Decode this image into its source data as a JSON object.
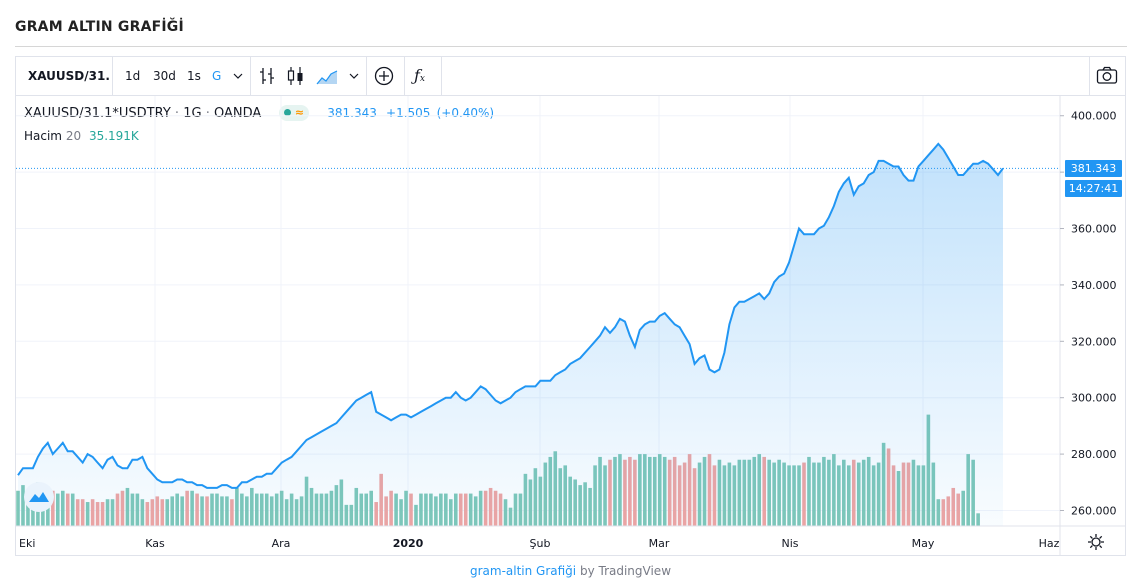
{
  "page": {
    "title": "GRAM ALTIN GRAFİĞİ"
  },
  "toolbar": {
    "symbol": "XAUUSD/31.",
    "intervals": [
      "1d",
      "30d",
      "1s",
      "G"
    ],
    "active_interval": "G",
    "icons": [
      "candle-bars-icon",
      "candlestick-icon",
      "area-chart-icon",
      "chevron-down-icon",
      "add-compare-icon",
      "indicators-icon",
      "camera-icon"
    ]
  },
  "legend": {
    "symbol_full": "XAUUSD/31.1*USDTRY",
    "interval": "1G",
    "source": "OANDA",
    "price": "381.343",
    "change": "+1.505",
    "change_pct": "(+0.40%)",
    "volume_label": "Hacim",
    "volume_length": "20",
    "volume_value": "35.191K"
  },
  "price_axis": {
    "current_price": "381.343",
    "countdown": "14:27:41"
  },
  "footer": {
    "link_text": "gram-altin Grafiği",
    "by_text": "by TradingView"
  },
  "colors": {
    "line": "#2196f3",
    "vol_up": "#7fc8b8",
    "vol_down": "#f0a5a2",
    "accent": "#2196f3"
  },
  "chart_data": {
    "type": "area",
    "y_tick_labels": [
      "400.000",
      "380.000",
      "360.000",
      "340.000",
      "320.000",
      "300.000",
      "280.000",
      "260.000"
    ],
    "ylim": [
      254.5,
      407
    ],
    "x_tick_labels": [
      "Eki",
      "Kas",
      "Ara",
      "2020",
      "Şub",
      "Mar",
      "Nis",
      "May",
      "Haz"
    ],
    "series": [
      {
        "values": [
          272.5,
          275,
          275,
          275,
          279,
          282,
          284,
          280,
          282,
          284,
          281,
          281,
          279,
          277,
          280,
          279,
          277,
          275,
          278,
          279,
          276,
          275,
          275,
          278,
          278,
          279,
          275,
          273,
          271,
          270,
          270,
          270,
          271,
          271,
          270,
          270,
          269,
          269,
          268,
          268,
          268,
          269,
          269,
          268,
          268,
          270,
          270,
          271,
          272,
          272,
          273,
          273,
          275,
          277,
          278,
          279,
          281,
          283,
          285,
          286,
          287,
          288,
          289,
          290,
          291,
          293,
          295,
          297,
          299,
          300,
          301,
          302,
          295,
          294,
          293,
          292,
          293,
          294,
          294,
          293,
          294,
          295,
          296,
          297,
          298,
          299,
          300,
          300,
          302,
          300,
          299,
          300,
          302,
          304,
          303,
          301,
          299,
          298,
          299,
          300,
          302,
          303,
          304,
          304,
          304,
          306,
          306,
          306,
          308,
          309,
          310,
          312,
          313,
          314,
          316,
          318,
          320,
          322,
          325,
          323,
          325,
          328,
          327,
          322,
          318,
          324,
          326,
          327,
          327,
          329,
          330,
          328,
          326,
          325,
          322,
          319,
          312,
          314,
          315,
          310,
          309,
          310,
          316,
          326,
          332,
          334,
          334,
          335,
          336,
          337,
          335,
          337,
          341,
          343,
          344,
          348,
          354,
          360,
          358,
          358,
          358,
          360,
          361,
          364,
          368,
          373,
          376,
          378,
          372,
          375,
          376,
          379,
          380,
          384,
          384,
          383,
          382,
          382,
          379,
          377,
          377,
          382,
          384,
          386,
          388,
          390,
          388,
          385,
          382,
          379,
          379,
          381,
          383,
          383,
          384,
          383,
          381,
          379,
          381.343
        ]
      },
      {
        "name": "Hacim",
        "values": [
          267,
          269,
          264,
          267,
          270,
          267,
          264,
          267,
          266,
          267,
          266,
          266,
          264,
          264,
          263,
          264,
          263,
          263,
          264,
          264,
          266,
          267,
          268,
          266,
          266,
          264,
          263,
          264,
          265,
          264,
          264,
          265,
          266,
          265,
          267,
          267,
          266,
          265,
          265,
          266,
          266,
          265,
          265,
          264,
          268,
          266,
          265,
          268,
          266,
          266,
          266,
          265,
          266,
          267,
          264,
          266,
          264,
          265,
          272,
          268,
          266,
          266,
          266,
          267,
          269,
          271,
          262,
          262,
          268,
          266,
          266,
          267,
          263,
          273,
          265,
          267,
          266,
          264,
          267,
          266,
          262,
          266,
          266,
          266,
          265,
          266,
          266,
          264,
          266,
          266,
          266,
          266,
          265,
          267,
          267,
          268,
          267,
          266,
          264,
          261,
          266,
          266,
          273,
          271,
          275,
          272,
          277,
          279,
          281,
          275,
          276,
          272,
          271,
          269,
          270,
          268,
          276,
          279,
          276,
          278,
          279,
          280,
          278,
          279,
          278,
          280,
          280,
          279,
          279,
          280,
          279,
          278,
          279,
          276,
          277,
          280,
          275,
          277,
          279,
          280,
          276,
          278,
          276,
          277,
          276,
          278,
          278,
          278,
          279,
          280,
          279,
          278,
          277,
          278,
          277,
          276,
          276,
          276,
          277,
          279,
          277,
          277,
          279,
          278,
          280,
          276,
          278,
          276,
          278,
          277,
          278,
          279,
          276,
          277,
          284,
          282,
          276,
          274,
          277,
          277,
          278,
          276,
          276,
          294,
          277,
          264,
          264,
          265,
          268,
          266,
          267,
          280,
          278,
          259
        ]
      }
    ]
  }
}
